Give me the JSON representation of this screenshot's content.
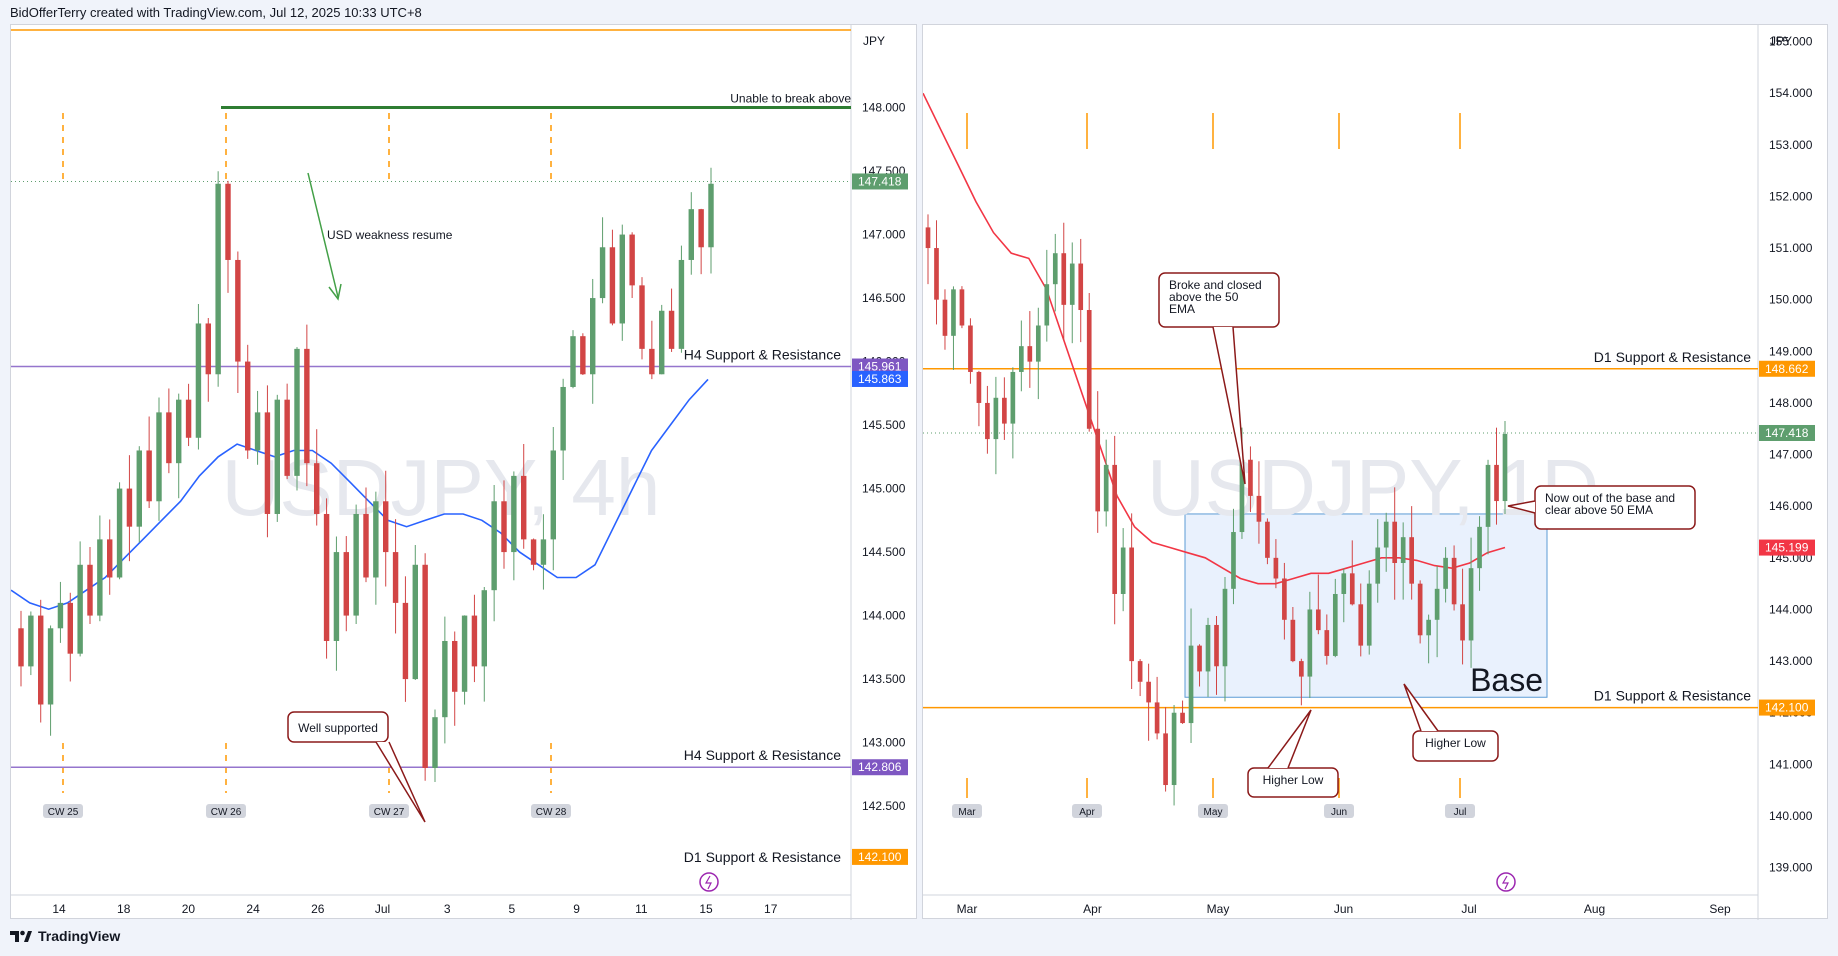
{
  "header": {
    "text": "BidOfferTerry created with TradingView.com, Jul 12, 2025 10:33 UTC+8"
  },
  "footer": {
    "brand": "TradingView"
  },
  "colors": {
    "up": "#26a69a",
    "down": "#ef5350",
    "up_candle": "#5e9e6e",
    "down_candle": "#d24545",
    "ema_left": "#2962ff",
    "ema_right": "#f23645",
    "support_purple": "#9575cd",
    "support_orange": "#ff9800",
    "green_line": "#2e7d32",
    "base_fill": "#dbe8fb"
  },
  "chart_data": [
    {
      "type": "candlestick",
      "title": "",
      "watermark": "USDJPY, 4h",
      "currency": "JPY",
      "ylim": [
        141.8,
        148.65
      ],
      "yticks": [
        "148.000",
        "147.500",
        "147.000",
        "146.500",
        "146.000",
        "145.500",
        "145.000",
        "144.500",
        "144.000",
        "143.500",
        "143.000",
        "142.500"
      ],
      "xticks": [
        "14",
        "18",
        "20",
        "24",
        "26",
        "Jul",
        "3",
        "5",
        "9",
        "11",
        "15",
        "17"
      ],
      "week_labels": [
        "CW 25",
        "CW 26",
        "CW 27",
        "CW 28"
      ],
      "price_badges": [
        {
          "label": "147.418",
          "value": 147.418,
          "color": "#5e9e6e"
        },
        {
          "label": "145.961",
          "value": 145.961,
          "color": "#7e57c2"
        },
        {
          "label": "145.863",
          "value": 145.863,
          "color": "#2962ff"
        },
        {
          "label": "142.806",
          "value": 142.806,
          "color": "#7e57c2"
        },
        {
          "label": "142.100",
          "value": 142.1,
          "color": "#ff9800"
        }
      ],
      "levels": [
        {
          "label": "Unable to break above",
          "value": 148.0,
          "color": "#2e7d32"
        },
        {
          "label": "H4 Support & Resistance",
          "value": 145.961,
          "color": "#9575cd"
        },
        {
          "label": "H4 Support & Resistance",
          "value": 142.806,
          "color": "#9575cd"
        },
        {
          "label": "D1 Support & Resistance",
          "value": 142.1,
          "color": "#ff9800"
        }
      ],
      "annotations": [
        {
          "text": "USD weakness resume"
        },
        {
          "text": "Well supported"
        }
      ],
      "series": [
        {
          "name": "",
          "close_path": [
            143.6,
            144.0,
            143.3,
            143.9,
            144.1,
            143.7,
            144.4,
            144.0,
            144.6,
            144.3,
            145.0,
            144.7,
            145.3,
            144.9,
            145.6,
            145.2,
            145.7,
            145.4,
            146.3,
            145.9,
            147.4,
            146.8,
            146.0,
            145.3,
            145.6,
            144.8,
            145.7,
            145.1,
            146.1,
            145.2,
            144.8,
            143.8,
            144.5,
            144.0,
            144.8,
            144.3,
            144.9,
            144.5,
            144.1,
            143.5,
            144.4,
            142.8,
            143.2,
            143.8,
            143.4,
            144.0,
            143.6,
            144.2,
            144.9,
            144.5,
            145.1,
            144.6,
            144.4,
            144.6,
            145.3,
            145.8,
            146.2,
            145.9,
            146.5,
            146.9,
            146.3,
            147.0,
            146.6,
            146.1,
            145.9,
            146.4,
            146.1,
            146.8,
            147.2,
            146.9,
            147.4
          ],
          "ema_path": [
            144.2,
            144.1,
            144.05,
            144.1,
            144.2,
            144.3,
            144.45,
            144.6,
            144.75,
            144.9,
            145.1,
            145.25,
            145.35,
            145.3,
            145.25,
            145.3,
            145.3,
            145.2,
            145.05,
            144.9,
            144.75,
            144.7,
            144.75,
            144.8,
            144.8,
            144.75,
            144.65,
            144.5,
            144.4,
            144.3,
            144.3,
            144.4,
            144.7,
            145.0,
            145.3,
            145.5,
            145.7,
            145.86
          ]
        }
      ]
    },
    {
      "type": "candlestick",
      "title": "",
      "watermark": "USDJPY, 1D",
      "currency": "JPY",
      "ylim": [
        138.47,
        155.32
      ],
      "yticks": [
        "155.000",
        "154.000",
        "153.000",
        "152.000",
        "151.000",
        "150.000",
        "149.000",
        "148.000",
        "147.000",
        "146.000",
        "145.000",
        "144.000",
        "143.000",
        "142.000",
        "141.000",
        "140.000",
        "139.000"
      ],
      "xticks": [
        "Mar",
        "Apr",
        "May",
        "Jun",
        "Jul",
        "Aug",
        "Sep"
      ],
      "month_labels": [
        "Mar",
        "Apr",
        "May",
        "Jun",
        "Jul"
      ],
      "price_badges": [
        {
          "label": "148.662",
          "value": 148.662,
          "color": "#ff9800"
        },
        {
          "label": "147.418",
          "value": 147.418,
          "color": "#5e9e6e"
        },
        {
          "label": "145.199",
          "value": 145.199,
          "color": "#f23645"
        },
        {
          "label": "142.100",
          "value": 142.1,
          "color": "#ff9800"
        }
      ],
      "levels": [
        {
          "label": "D1 Support & Resistance",
          "value": 148.662,
          "color": "#ff9800"
        },
        {
          "label": "D1 Support & Resistance",
          "value": 142.1,
          "color": "#ff9800"
        }
      ],
      "base_zone": {
        "label": "Base",
        "low": 142.3,
        "high": 145.85
      },
      "annotations": [
        {
          "text": "Broke and closed above the 50 EMA",
          "lines": [
            "Broke and closed",
            "above the 50",
            "EMA"
          ]
        },
        {
          "text": "Now out of the base and clear above 50 EMA",
          "lines": [
            "Now out of the base and",
            "clear above 50 EMA"
          ]
        },
        {
          "text": "Higher Low"
        },
        {
          "text": "Higher Low"
        }
      ],
      "series": [
        {
          "name": "",
          "close_path": [
            151.0,
            150.0,
            149.3,
            150.2,
            149.5,
            148.6,
            148.0,
            147.3,
            148.1,
            147.6,
            148.6,
            149.1,
            148.8,
            149.5,
            150.3,
            150.9,
            149.9,
            150.7,
            149.8,
            147.5,
            145.9,
            146.8,
            144.3,
            145.2,
            143.0,
            142.6,
            142.2,
            141.6,
            140.6,
            142.0,
            141.8,
            143.3,
            142.8,
            143.7,
            142.9,
            144.4,
            145.5,
            146.9,
            146.2,
            145.7,
            145.0,
            144.6,
            143.8,
            143.0,
            142.7,
            144.0,
            143.6,
            143.1,
            144.3,
            144.7,
            144.1,
            143.3,
            144.5,
            145.2,
            145.7,
            144.9,
            145.4,
            144.5,
            143.5,
            143.8,
            144.4,
            145.0,
            144.1,
            143.4,
            144.8,
            145.6,
            146.8,
            146.1,
            147.4
          ],
          "ema_path": [
            154.0,
            153.3,
            152.6,
            151.9,
            151.3,
            150.9,
            150.8,
            150.2,
            149.2,
            148.2,
            147.2,
            146.2,
            145.6,
            145.3,
            145.2,
            145.1,
            145.0,
            144.8,
            144.6,
            144.5,
            144.5,
            144.6,
            144.7,
            144.7,
            144.8,
            144.9,
            145.0,
            145.0,
            144.95,
            144.85,
            144.8,
            144.9,
            145.1,
            145.2
          ]
        }
      ]
    }
  ]
}
